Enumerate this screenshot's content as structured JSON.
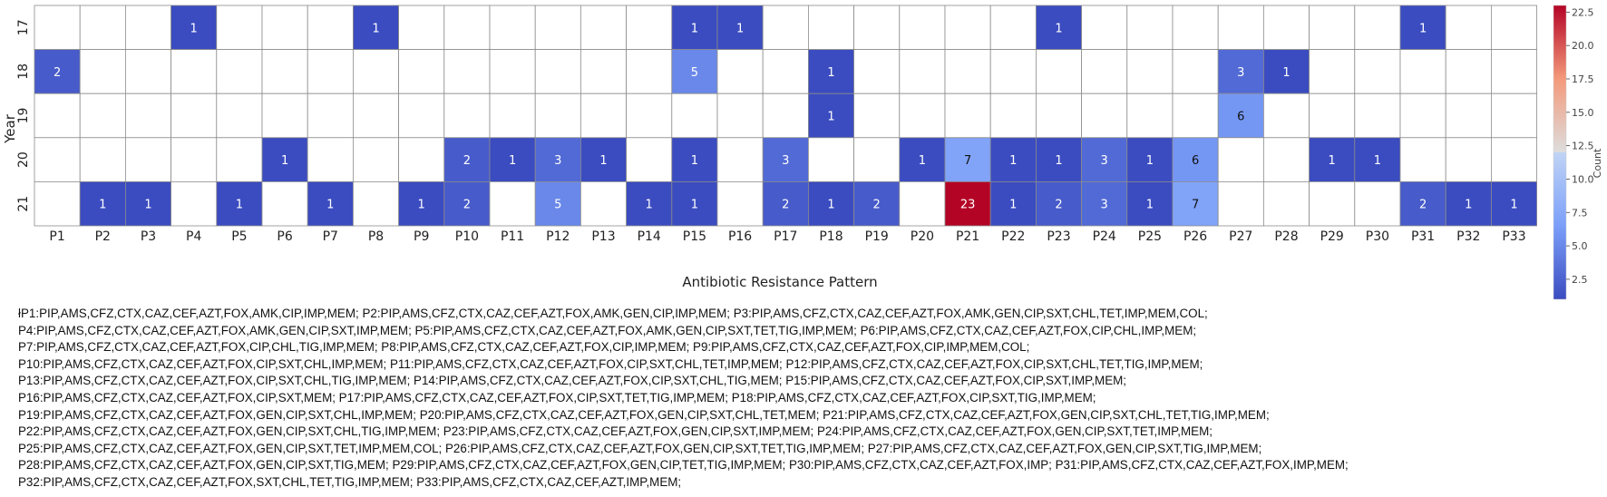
{
  "chart_data": {
    "type": "heatmap",
    "title": "",
    "xlabel": "Antibiotic Resistance Pattern",
    "ylabel": "Year",
    "colorbar_label": "Count",
    "colorbar_ticks": [
      "2.5",
      "5.0",
      "7.5",
      "10.0",
      "12.5",
      "15.0",
      "17.5",
      "20.0",
      "22.5"
    ],
    "vmin": 1,
    "vmax": 23,
    "categories": [
      "P1",
      "P2",
      "P3",
      "P4",
      "P5",
      "P6",
      "P7",
      "P8",
      "P9",
      "P10",
      "P11",
      "P12",
      "P13",
      "P14",
      "P15",
      "P16",
      "P17",
      "P18",
      "P19",
      "P20",
      "P21",
      "P22",
      "P23",
      "P24",
      "P25",
      "P26",
      "P27",
      "P28",
      "P29",
      "P30",
      "P31",
      "P32",
      "P33"
    ],
    "years": [
      "17",
      "18",
      "19",
      "20",
      "21"
    ],
    "values": [
      [
        null,
        null,
        null,
        1,
        null,
        null,
        null,
        1,
        null,
        null,
        null,
        null,
        null,
        null,
        1,
        1,
        null,
        null,
        null,
        null,
        null,
        null,
        1,
        null,
        null,
        null,
        null,
        null,
        null,
        null,
        1,
        null,
        null
      ],
      [
        2,
        null,
        null,
        null,
        null,
        null,
        null,
        null,
        null,
        null,
        null,
        null,
        null,
        null,
        5,
        null,
        null,
        1,
        null,
        null,
        null,
        null,
        null,
        null,
        null,
        null,
        3,
        1,
        null,
        null,
        null,
        null,
        null
      ],
      [
        null,
        null,
        null,
        null,
        null,
        null,
        null,
        null,
        null,
        null,
        null,
        null,
        null,
        null,
        null,
        null,
        null,
        1,
        null,
        null,
        null,
        null,
        null,
        null,
        null,
        null,
        6,
        null,
        null,
        null,
        null,
        null,
        null
      ],
      [
        null,
        null,
        null,
        null,
        null,
        1,
        null,
        null,
        null,
        2,
        1,
        3,
        1,
        null,
        1,
        null,
        3,
        null,
        null,
        1,
        7,
        1,
        1,
        3,
        1,
        6,
        null,
        null,
        1,
        1,
        null,
        null,
        null
      ],
      [
        null,
        1,
        1,
        null,
        1,
        null,
        1,
        null,
        1,
        2,
        null,
        5,
        null,
        1,
        1,
        null,
        2,
        1,
        2,
        null,
        23,
        1,
        2,
        3,
        1,
        7,
        null,
        null,
        null,
        null,
        2,
        1,
        1
      ]
    ]
  },
  "pattern_legend": [
    "łP1:PIP,AMS,CFZ,CTX,CAZ,CEF,AZT,FOX,AMK,CIP,IMP,MEM;  P2:PIP,AMS,CFZ,CTX,CAZ,CEF,AZT,FOX,AMK,GEN,CIP,IMP,MEM;  P3:PIP,AMS,CFZ,CTX,CAZ,CEF,AZT,FOX,AMK,GEN,CIP,SXT,CHL,TET,IMP,MEM,COL;",
    "P4:PIP,AMS,CFZ,CTX,CAZ,CEF,AZT,FOX,AMK,GEN,CIP,SXT,IMP,MEM;  P5:PIP,AMS,CFZ,CTX,CAZ,CEF,AZT,FOX,AMK,GEN,CIP,SXT,TET,TIG,IMP,MEM;  P6:PIP,AMS,CFZ,CTX,CAZ,CEF,AZT,FOX,CIP,CHL,IMP,MEM;",
    "P7:PIP,AMS,CFZ,CTX,CAZ,CEF,AZT,FOX,CIP,CHL,TIG,IMP,MEM;  P8:PIP,AMS,CFZ,CTX,CAZ,CEF,AZT,FOX,CIP,IMP,MEM;  P9:PIP,AMS,CFZ,CTX,CAZ,CEF,AZT,FOX,CIP,IMP,MEM,COL;",
    "P10:PIP,AMS,CFZ,CTX,CAZ,CEF,AZT,FOX,CIP,SXT,CHL,IMP,MEM;  P11:PIP,AMS,CFZ,CTX,CAZ,CEF,AZT,FOX,CIP,SXT,CHL,TET,IMP,MEM;  P12:PIP,AMS,CFZ,CTX,CAZ,CEF,AZT,FOX,CIP,SXT,CHL,TET,TIG,IMP,MEM;",
    "P13:PIP,AMS,CFZ,CTX,CAZ,CEF,AZT,FOX,CIP,SXT,CHL,TIG,IMP,MEM;  P14:PIP,AMS,CFZ,CTX,CAZ,CEF,AZT,FOX,CIP,SXT,CHL,TIG,MEM;  P15:PIP,AMS,CFZ,CTX,CAZ,CEF,AZT,FOX,CIP,SXT,IMP,MEM;",
    "P16:PIP,AMS,CFZ,CTX,CAZ,CEF,AZT,FOX,CIP,SXT,MEM;  P17:PIP,AMS,CFZ,CTX,CAZ,CEF,AZT,FOX,CIP,SXT,TET,TIG,IMP,MEM;  P18:PIP,AMS,CFZ,CTX,CAZ,CEF,AZT,FOX,CIP,SXT,TIG,IMP,MEM;",
    "P19:PIP,AMS,CFZ,CTX,CAZ,CEF,AZT,FOX,GEN,CIP,SXT,CHL,IMP,MEM;  P20:PIP,AMS,CFZ,CTX,CAZ,CEF,AZT,FOX,GEN,CIP,SXT,CHL,TET,MEM;  P21:PIP,AMS,CFZ,CTX,CAZ,CEF,AZT,FOX,GEN,CIP,SXT,CHL,TET,TIG,IMP,MEM;",
    "P22:PIP,AMS,CFZ,CTX,CAZ,CEF,AZT,FOX,GEN,CIP,SXT,CHL,TIG,IMP,MEM;  P23:PIP,AMS,CFZ,CTX,CAZ,CEF,AZT,FOX,GEN,CIP,SXT,IMP,MEM;  P24:PIP,AMS,CFZ,CTX,CAZ,CEF,AZT,FOX,GEN,CIP,SXT,TET,IMP,MEM;",
    "P25:PIP,AMS,CFZ,CTX,CAZ,CEF,AZT,FOX,GEN,CIP,SXT,TET,IMP,MEM,COL;  P26:PIP,AMS,CFZ,CTX,CAZ,CEF,AZT,FOX,GEN,CIP,SXT,TET,TIG,IMP,MEM;  P27:PIP,AMS,CFZ,CTX,CAZ,CEF,AZT,FOX,GEN,CIP,SXT,TIG,IMP,MEM;",
    "P28:PIP,AMS,CFZ,CTX,CAZ,CEF,AZT,FOX,GEN,CIP,SXT,TIG,MEM;  P29:PIP,AMS,CFZ,CTX,CAZ,CEF,AZT,FOX,GEN,CIP,TET,TIG,IMP,MEM;  P30:PIP,AMS,CFZ,CTX,CAZ,CEF,AZT,FOX,IMP;  P31:PIP,AMS,CFZ,CTX,CAZ,CEF,AZT,FOX,IMP,MEM;",
    "P32:PIP,AMS,CFZ,CTX,CAZ,CEF,AZT,FOX,SXT,CHL,TET,TIG,IMP,MEM;  P33:PIP,AMS,CFZ,CTX,CAZ,CEF,AZT,IMP,MEM;"
  ]
}
